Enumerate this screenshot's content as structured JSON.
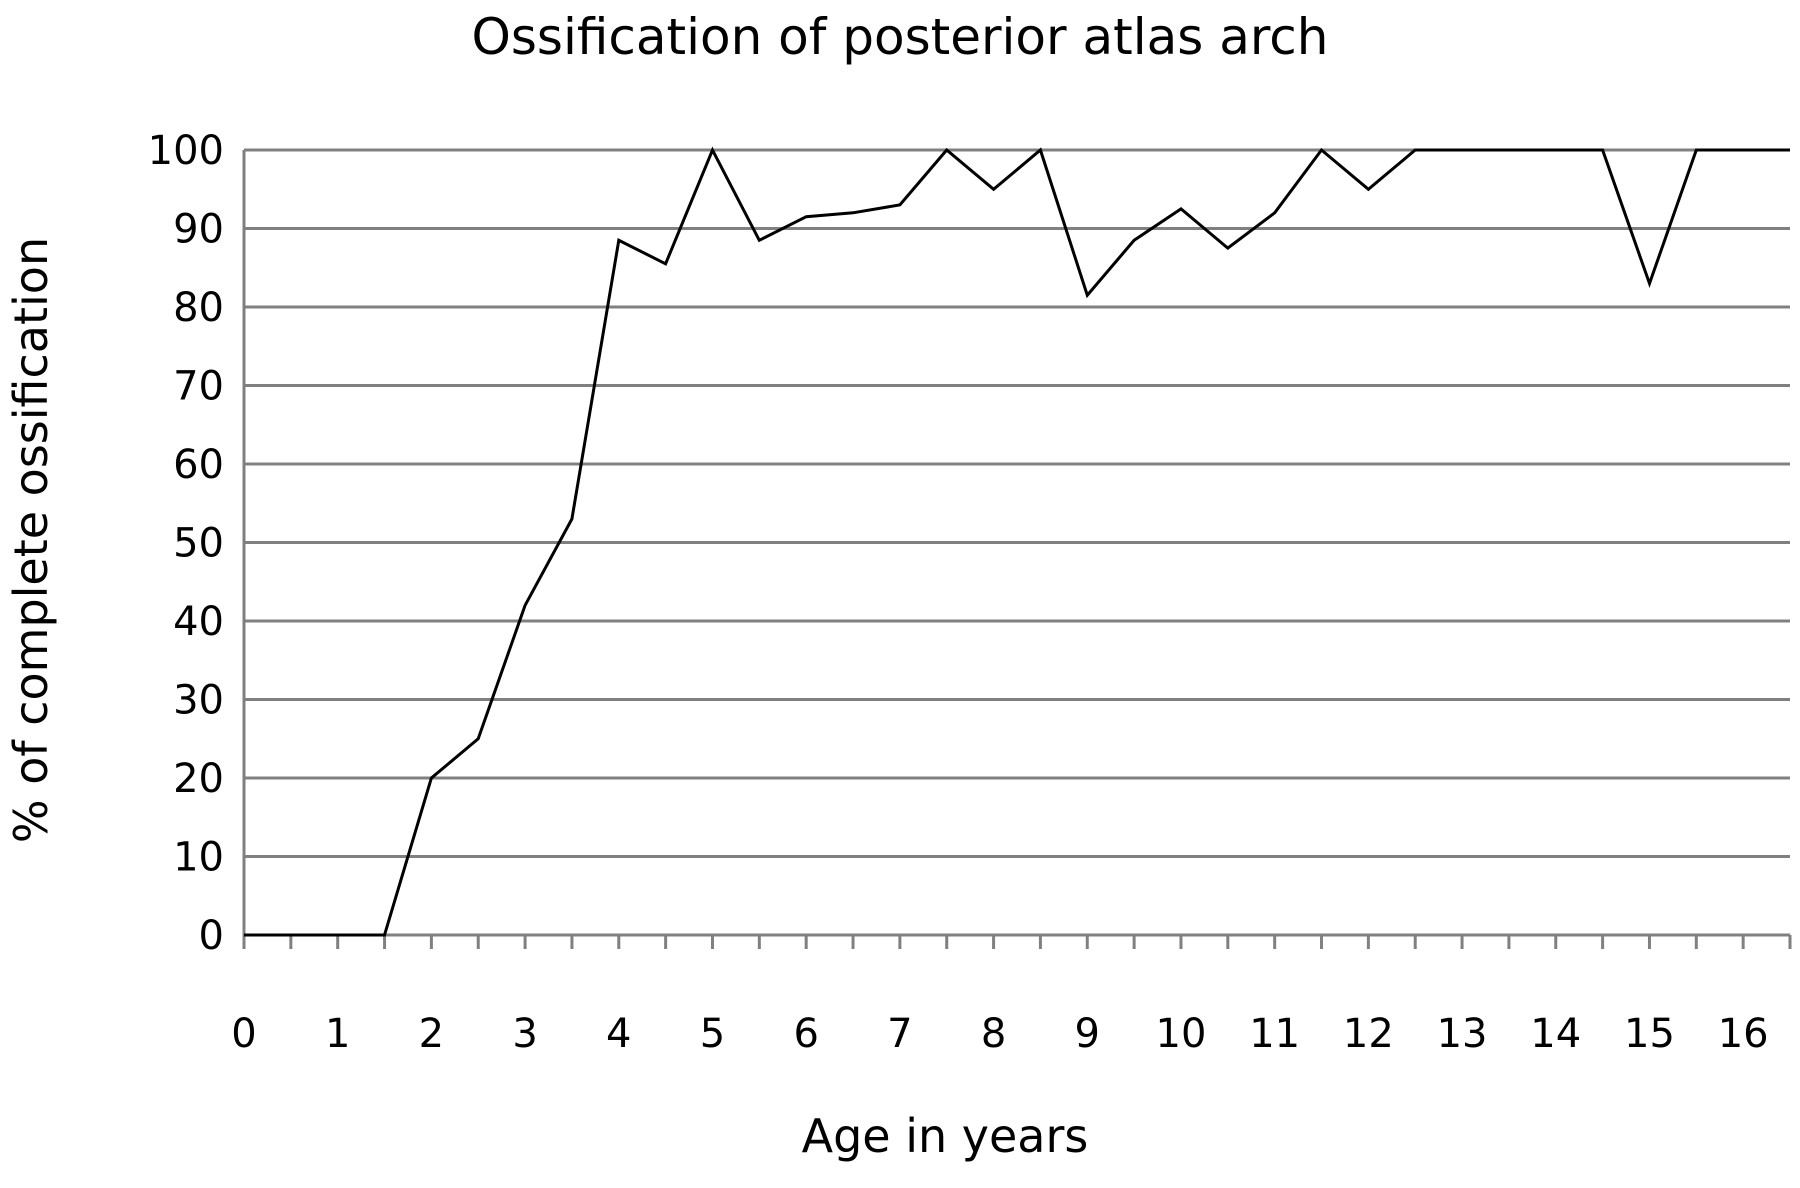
{
  "chart_data": {
    "type": "line",
    "title": "Ossification of posterior atlas arch",
    "xlabel": "Age in years",
    "ylabel": "% of complete ossification",
    "xlim": [
      0,
      16.5
    ],
    "ylim": [
      0,
      100
    ],
    "x_ticks": [
      0,
      1,
      2,
      3,
      4,
      5,
      6,
      7,
      8,
      9,
      10,
      11,
      12,
      13,
      14,
      15,
      16
    ],
    "y_ticks": [
      0,
      10,
      20,
      30,
      40,
      50,
      60,
      70,
      80,
      90,
      100
    ],
    "grid": true,
    "legend": "none",
    "line_color": "#000000",
    "grid_color": "#808080",
    "series": [
      {
        "x": [
          0,
          0.5,
          1,
          1.5,
          2,
          2.5,
          3,
          3.5,
          4,
          4.5,
          5,
          5.5,
          6,
          6.5,
          7,
          7.5,
          8,
          8.5,
          9,
          9.5,
          10,
          10.5,
          11,
          11.5,
          12,
          12.5,
          13,
          13.5,
          14,
          14.5,
          15,
          15.5,
          16,
          16.5
        ],
        "values": [
          0,
          0,
          0,
          0,
          20,
          25,
          42,
          53,
          88.5,
          85.5,
          100,
          88.5,
          91.5,
          92,
          93,
          100,
          95,
          100,
          81.5,
          88.5,
          92.5,
          87.5,
          92,
          100,
          95,
          100,
          100,
          100,
          100,
          100,
          83,
          100,
          100,
          100
        ]
      }
    ]
  }
}
